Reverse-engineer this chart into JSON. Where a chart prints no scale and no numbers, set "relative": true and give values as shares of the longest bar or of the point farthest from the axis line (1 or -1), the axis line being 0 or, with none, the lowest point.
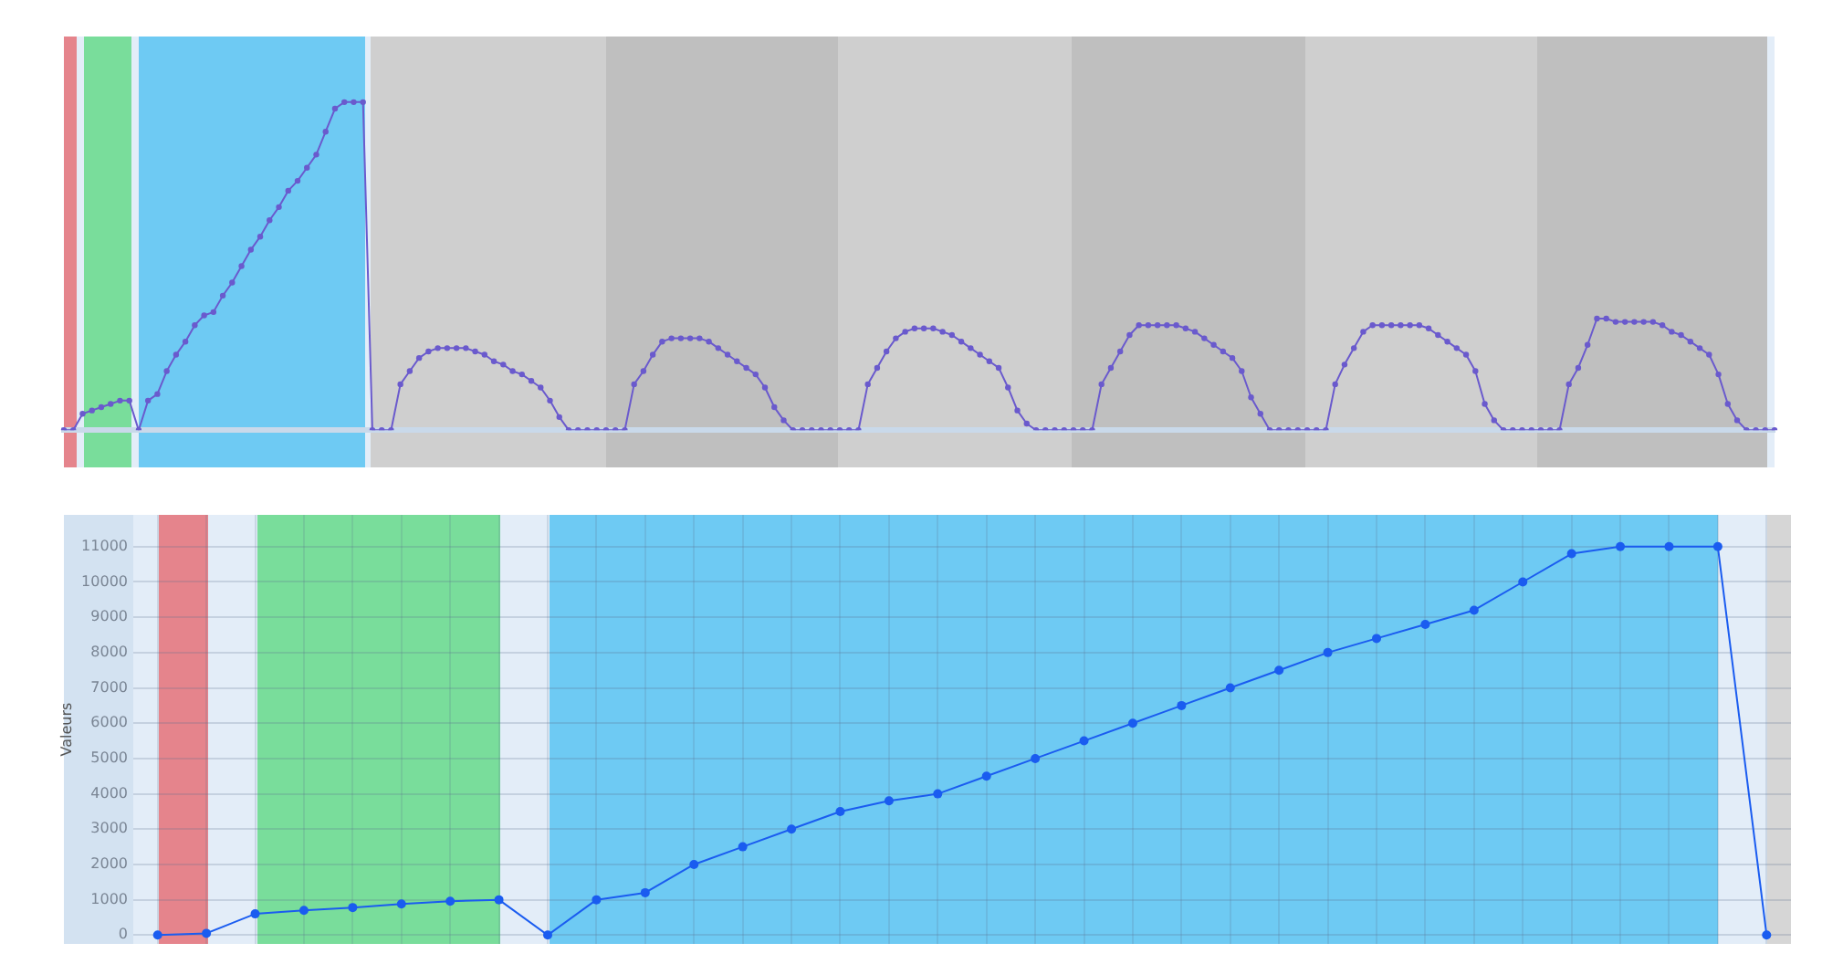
{
  "chart_data": [
    {
      "type": "line",
      "relative": true,
      "marker": "circle",
      "line_style": "solid",
      "categories": [
        null,
        null,
        null,
        null,
        null,
        null,
        null,
        null,
        null,
        null,
        null,
        null,
        null,
        null,
        null,
        null,
        null,
        null,
        null,
        null,
        null,
        null,
        null,
        null,
        null,
        null,
        null,
        null,
        null,
        null,
        null,
        null,
        null,
        null,
        null,
        null,
        null,
        null,
        null,
        null,
        null,
        null,
        null,
        null,
        null,
        null,
        null,
        null,
        null,
        null,
        null,
        null,
        null,
        null,
        null,
        null,
        null,
        null,
        null,
        null,
        null,
        null,
        null,
        null,
        null,
        null,
        null,
        null,
        null,
        null,
        null,
        null,
        null,
        null,
        null,
        null,
        null,
        null,
        null,
        null,
        null,
        null,
        null,
        null,
        null,
        null,
        null,
        null,
        null,
        null,
        null,
        null,
        null,
        null,
        null,
        null,
        null,
        null,
        null,
        null,
        null,
        null,
        null,
        null,
        null,
        null,
        null,
        null,
        null,
        null,
        null,
        null,
        null,
        null,
        null,
        null,
        null,
        null,
        null,
        null,
        null,
        null,
        null,
        null,
        null,
        null,
        null,
        null,
        null,
        null,
        null,
        null,
        null,
        null,
        null,
        null,
        null,
        null,
        null,
        null,
        null,
        null,
        null,
        null,
        null,
        null,
        null,
        null,
        null,
        null,
        null,
        null,
        null,
        null,
        null,
        null,
        null,
        null,
        null,
        null,
        null,
        null,
        null,
        null,
        null,
        null,
        null,
        null,
        null,
        null,
        null,
        null,
        null,
        null,
        null,
        null,
        null,
        null,
        null,
        null,
        null,
        null,
        null,
        null
      ],
      "series": [
        {
          "color": "#6a5acd",
          "values": [
            0,
            0,
            0.05,
            0.06,
            0.07,
            0.08,
            0.09,
            0.09,
            0,
            0.09,
            0.11,
            0.18,
            0.23,
            0.27,
            0.32,
            0.35,
            0.36,
            0.41,
            0.45,
            0.5,
            0.55,
            0.59,
            0.64,
            0.68,
            0.73,
            0.76,
            0.8,
            0.84,
            0.91,
            0.98,
            1,
            1,
            1,
            0,
            0,
            0,
            0.14,
            0.18,
            0.22,
            0.24,
            0.25,
            0.25,
            0.25,
            0.25,
            0.24,
            0.23,
            0.21,
            0.2,
            0.18,
            0.17,
            0.15,
            0.13,
            0.09,
            0.04,
            0,
            0,
            0,
            0,
            0,
            0,
            0,
            0.14,
            0.18,
            0.23,
            0.27,
            0.28,
            0.28,
            0.28,
            0.28,
            0.27,
            0.25,
            0.23,
            0.21,
            0.19,
            0.17,
            0.13,
            0.07,
            0.03,
            0,
            0,
            0,
            0,
            0,
            0,
            0,
            0,
            0.14,
            0.19,
            0.24,
            0.28,
            0.3,
            0.31,
            0.31,
            0.31,
            0.3,
            0.29,
            0.27,
            0.25,
            0.23,
            0.21,
            0.19,
            0.13,
            0.06,
            0.02,
            0,
            0,
            0,
            0,
            0,
            0,
            0,
            0.14,
            0.19,
            0.24,
            0.29,
            0.32,
            0.32,
            0.32,
            0.32,
            0.32,
            0.31,
            0.3,
            0.28,
            0.26,
            0.24,
            0.22,
            0.18,
            0.1,
            0.05,
            0,
            0,
            0,
            0,
            0,
            0,
            0,
            0.14,
            0.2,
            0.25,
            0.3,
            0.32,
            0.32,
            0.32,
            0.32,
            0.32,
            0.32,
            0.31,
            0.29,
            0.27,
            0.25,
            0.23,
            0.18,
            0.08,
            0.03,
            0,
            0,
            0,
            0,
            0,
            0,
            0,
            0.14,
            0.19,
            0.26,
            0.34,
            0.34,
            0.33,
            0.33,
            0.33,
            0.33,
            0.33,
            0.32,
            0.3,
            0.29,
            0.27,
            0.25,
            0.23,
            0.17,
            0.08,
            0.03,
            0,
            0,
            0,
            0
          ]
        }
      ]
    },
    {
      "type": "line",
      "ylabel": "Valeurs",
      "marker": "circle",
      "line_style": "solid",
      "grid": true,
      "tick_labels": "y",
      "categories": [
        null,
        null,
        null,
        null,
        null,
        null,
        null,
        null,
        null,
        null,
        null,
        null,
        null,
        null,
        null,
        null,
        null,
        null,
        null,
        null,
        null,
        null,
        null,
        null,
        null,
        null,
        null,
        null,
        null,
        null,
        null,
        null,
        null,
        null
      ],
      "ylim": [
        -250,
        11900
      ],
      "yticks": [
        0,
        1000,
        2000,
        3000,
        4000,
        5000,
        6000,
        7000,
        8000,
        9000,
        10000,
        11000
      ],
      "series": [
        {
          "color": "#1a5cf0",
          "values": [
            0,
            50,
            600,
            700,
            780,
            880,
            960,
            1000,
            0,
            1000,
            1200,
            2000,
            2500,
            3000,
            3500,
            3800,
            4000,
            4500,
            5000,
            5500,
            6000,
            6500,
            7000,
            7500,
            8000,
            8400,
            8800,
            9200,
            10000,
            10800,
            11000,
            11000,
            11000,
            0
          ]
        }
      ]
    }
  ]
}
